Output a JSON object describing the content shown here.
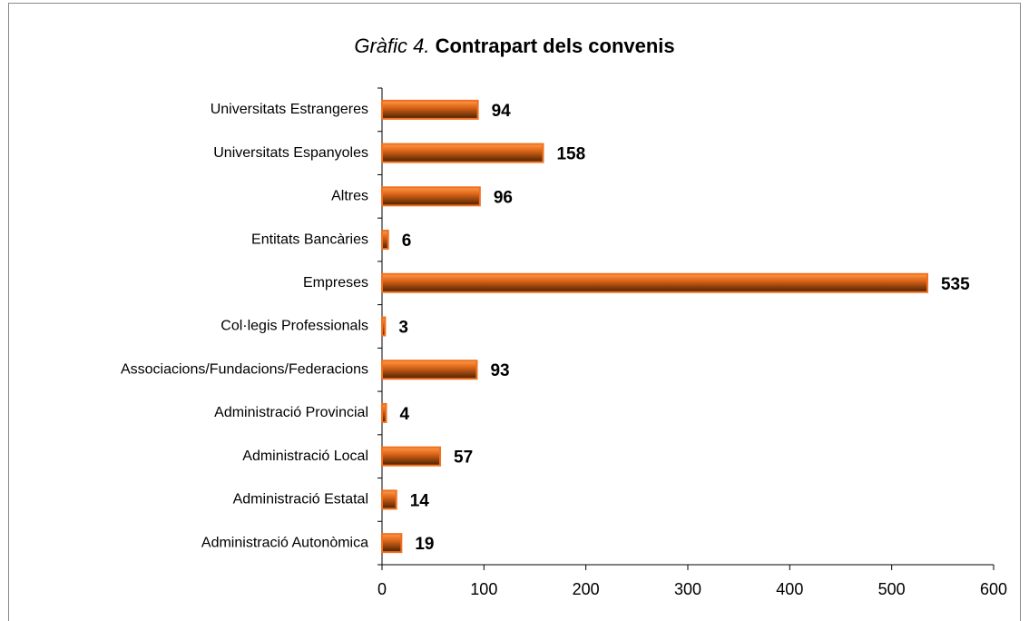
{
  "chart_data": {
    "type": "barh",
    "title": {
      "number": "Gràfic 4.",
      "text": "Contrapart dels convenis"
    },
    "categories": [
      "Universitats Estrangeres",
      "Universitats Espanyoles",
      "Altres",
      "Entitats Bancàries",
      "Empreses",
      "Col·legis Professionals",
      "Associacions/Fundacions/Federacions",
      "Administració Provincial",
      "Administració Local",
      "Administració Estatal",
      "Administració Autonòmica"
    ],
    "values": [
      94,
      158,
      96,
      6,
      535,
      3,
      93,
      4,
      57,
      14,
      19
    ],
    "color": "#f07020",
    "xlim": [
      0,
      600
    ],
    "xticks": [
      0,
      100,
      200,
      300,
      400,
      500,
      600
    ],
    "grid": false
  }
}
